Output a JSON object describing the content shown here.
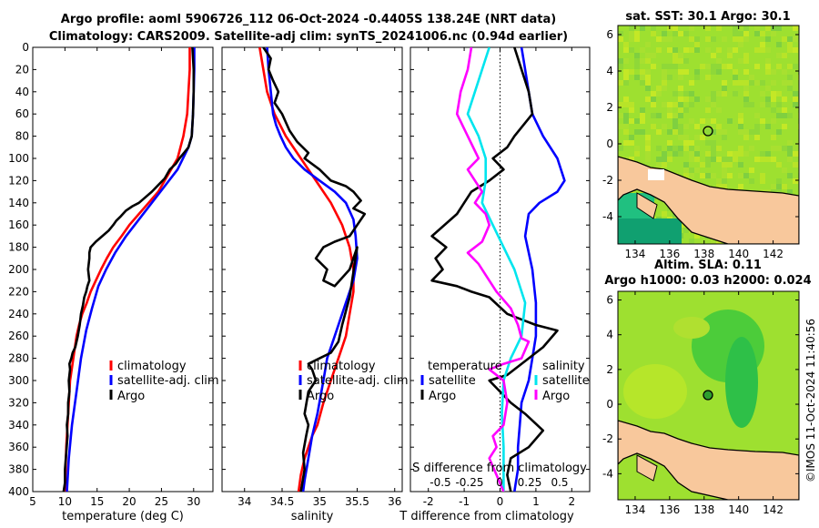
{
  "title_line1": "Argo profile: aoml 5906726_112 06-Oct-2024 -0.4405S 138.24E (NRT data)",
  "title_line2": "Climatology: CARS2009. Satellite-adj clim: synTS_20241006.nc (0.94d earlier)",
  "credit": "©IMOS 11-Oct-2024 11:40:56",
  "depth_ticks": [
    0,
    20,
    40,
    60,
    80,
    100,
    120,
    140,
    160,
    180,
    200,
    220,
    240,
    260,
    280,
    300,
    320,
    340,
    360,
    380,
    400
  ],
  "chart_data": [
    {
      "type": "line",
      "name": "temperature",
      "xlabel": "temperature (deg C)",
      "xlim": [
        5,
        33
      ],
      "ylim": [
        0,
        400
      ],
      "xticks": [
        5,
        10,
        15,
        20,
        25,
        30
      ],
      "legend": [
        "climatology",
        "satellite-adj. clim",
        "Argo"
      ],
      "series": [
        {
          "name": "climatology",
          "color": "#ff0000",
          "x": [
            29.4,
            29.4,
            29.2,
            29,
            28.4,
            27.5,
            26.5,
            25.5,
            24.5,
            23,
            21.5,
            20,
            18.8,
            17.5,
            16.5,
            15.6,
            14.8,
            14,
            13.4,
            12.7,
            12.2,
            11.8,
            11.3,
            10.8,
            10.5,
            10.2,
            10
          ],
          "y": [
            0,
            20,
            40,
            60,
            80,
            100,
            110,
            120,
            130,
            140,
            150,
            160,
            170,
            180,
            190,
            200,
            210,
            220,
            230,
            240,
            250,
            260,
            280,
            300,
            330,
            360,
            400
          ]
        },
        {
          "name": "satellite-adj. clim",
          "color": "#0000ff",
          "x": [
            30.1,
            30.1,
            30,
            29.9,
            29.7,
            29.2,
            27.5,
            25.5,
            23.5,
            21.5,
            19.5,
            17.8,
            16.4,
            15.2,
            14.2,
            13.3,
            12.5,
            11.8,
            11.1,
            10.6,
            10.3
          ],
          "y": [
            0,
            20,
            40,
            60,
            80,
            90,
            110,
            125,
            140,
            155,
            170,
            185,
            200,
            215,
            235,
            255,
            280,
            310,
            340,
            370,
            400
          ]
        },
        {
          "name": "Argo",
          "color": "#000000",
          "x": [
            29.8,
            29.9,
            30,
            30,
            29.9,
            29.7,
            29.2,
            28.5,
            27.8,
            27.2,
            26.3,
            25.5,
            24.5,
            23.5,
            22.5,
            21.5,
            20.5,
            19.5,
            18.7,
            18,
            17.5,
            16.8,
            15.8,
            14.8,
            14,
            13.8,
            13.8,
            13.6,
            13.8,
            13.5,
            13.3,
            13,
            12.8,
            12.5,
            12.3,
            12,
            11.6,
            11.2,
            11,
            10.7,
            10.8,
            10.6,
            10.7,
            10.5,
            10.5,
            10.3,
            10.4,
            10.2,
            10,
            10,
            9.8
          ],
          "y": [
            0,
            10,
            20,
            40,
            60,
            80,
            90,
            95,
            100,
            105,
            110,
            118,
            124,
            130,
            135,
            140,
            143,
            147,
            152,
            156,
            160,
            165,
            170,
            175,
            180,
            185,
            190,
            200,
            210,
            215,
            220,
            225,
            232,
            240,
            250,
            260,
            270,
            275,
            280,
            285,
            290,
            300,
            310,
            320,
            330,
            340,
            350,
            365,
            380,
            392,
            400
          ]
        }
      ]
    },
    {
      "type": "line",
      "name": "salinity",
      "xlabel": "salinity",
      "xlim": [
        33.7,
        36.1
      ],
      "ylim": [
        0,
        400
      ],
      "xticks": [
        34,
        34.5,
        35,
        35.5,
        36
      ],
      "legend": [
        "climatology",
        "satellite-adj. clim",
        "Argo"
      ],
      "series": [
        {
          "name": "climatology",
          "color": "#ff0000",
          "x": [
            34.2,
            34.25,
            34.3,
            34.4,
            34.55,
            34.75,
            34.95,
            35.15,
            35.3,
            35.4,
            35.45,
            35.45,
            35.4,
            35.35,
            35.25,
            35.15,
            35.05,
            34.97,
            34.9,
            34.85,
            34.8,
            34.75,
            34.72
          ],
          "y": [
            0,
            20,
            40,
            60,
            80,
            100,
            120,
            140,
            160,
            180,
            200,
            220,
            240,
            260,
            280,
            300,
            320,
            340,
            350,
            360,
            370,
            385,
            400
          ]
        },
        {
          "name": "satellite-adj. clim",
          "color": "#0000ff",
          "x": [
            34.3,
            34.32,
            34.35,
            34.38,
            34.42,
            34.48,
            34.55,
            34.65,
            34.8,
            35,
            35.2,
            35.35,
            35.45,
            35.48,
            35.5,
            35.45,
            35.35,
            35.2,
            35.1,
            35.05,
            34.97,
            34.9,
            34.85,
            34.8,
            34.78
          ],
          "y": [
            0,
            20,
            40,
            60,
            70,
            80,
            90,
            100,
            110,
            120,
            130,
            140,
            155,
            170,
            190,
            210,
            230,
            260,
            280,
            300,
            330,
            350,
            370,
            390,
            400
          ]
        },
        {
          "name": "Argo",
          "color": "#000000",
          "x": [
            34.25,
            34.3,
            34.35,
            34.32,
            34.38,
            34.45,
            34.4,
            34.5,
            34.6,
            34.7,
            34.85,
            34.8,
            35,
            35.15,
            35.35,
            35.45,
            35.55,
            35.45,
            35.6,
            35.5,
            35.4,
            35.2,
            35.05,
            34.95,
            35.1,
            35.05,
            35.2,
            35.4,
            35.5,
            35.4,
            35.3,
            35.25,
            35.15,
            35,
            34.85,
            34.9,
            34.95,
            34.85,
            34.8,
            34.85,
            34.82,
            34.78,
            34.8,
            34.75
          ],
          "y": [
            0,
            5,
            10,
            20,
            30,
            40,
            50,
            60,
            75,
            85,
            95,
            100,
            110,
            120,
            125,
            130,
            138,
            145,
            150,
            160,
            170,
            175,
            180,
            190,
            200,
            210,
            215,
            200,
            180,
            225,
            250,
            265,
            275,
            280,
            285,
            290,
            300,
            310,
            330,
            340,
            350,
            365,
            380,
            400
          ]
        }
      ]
    },
    {
      "type": "line",
      "name": "difference",
      "xlabel": "T difference from climatology",
      "xlabel2": "S difference from climatology",
      "xlim": [
        -2.5,
        2.5
      ],
      "ylim": [
        0,
        400
      ],
      "xticks": [
        -2,
        -1,
        0,
        1,
        2
      ],
      "sticks_labels": [
        "-0.5",
        "-0.25",
        "0",
        "0.25",
        "0.5"
      ],
      "legend_left_title": "temperature",
      "legend_right_title": "salinity",
      "legend": [
        "satellite",
        "Argo",
        "satellite",
        "Argo"
      ],
      "series": [
        {
          "name": "temperature satellite",
          "color": "#0000ff",
          "x": [
            0.6,
            0.7,
            0.8,
            0.9,
            1.2,
            1.6,
            1.8,
            1.6,
            1.1,
            0.8,
            0.7,
            0.9,
            1.0,
            1.0,
            0.9,
            0.8,
            0.6,
            0.55,
            0.5,
            0.5,
            0.45,
            0.4
          ],
          "y": [
            0,
            20,
            40,
            60,
            80,
            100,
            120,
            130,
            140,
            150,
            170,
            200,
            230,
            260,
            280,
            300,
            320,
            340,
            360,
            380,
            390,
            400
          ]
        },
        {
          "name": "temperature Argo",
          "color": "#000000",
          "x": [
            0.4,
            0.6,
            0.8,
            0.9,
            0.4,
            0.2,
            -0.2,
            0.1,
            -0.3,
            -0.8,
            -1.2,
            -1.9,
            -1.5,
            -1.8,
            -1.6,
            -1.9,
            -1.2,
            -0.8,
            -0.3,
            0.2,
            0.6,
            1.0,
            1.6,
            1.2,
            0.8,
            0.2,
            -0.3,
            0.3,
            0.7,
            1.2,
            0.8,
            0.3,
            0.2,
            0.3
          ],
          "y": [
            0,
            20,
            40,
            60,
            80,
            90,
            100,
            110,
            120,
            130,
            150,
            170,
            180,
            190,
            200,
            210,
            215,
            220,
            225,
            240,
            245,
            250,
            255,
            270,
            280,
            295,
            300,
            320,
            330,
            345,
            360,
            370,
            385,
            400
          ]
        },
        {
          "name": "salinity satellite",
          "color": "#00e5ee",
          "x": [
            -0.3,
            -0.5,
            -0.7,
            -0.9,
            -0.6,
            -0.4,
            -0.4,
            -0.5,
            -0.2,
            0.1,
            0.4,
            0.7,
            0.6,
            0.3,
            0.1,
            0.05,
            0.1,
            0.1,
            0.1
          ],
          "y": [
            0,
            20,
            40,
            60,
            80,
            100,
            120,
            140,
            160,
            180,
            200,
            230,
            260,
            280,
            300,
            330,
            360,
            380,
            400
          ]
        },
        {
          "name": "salinity Argo",
          "color": "#ff00ff",
          "x": [
            -0.8,
            -0.9,
            -1.1,
            -1.2,
            -0.9,
            -0.6,
            -0.9,
            -0.5,
            -0.7,
            -0.4,
            -0.3,
            -0.5,
            -0.9,
            -0.6,
            -0.4,
            -0.1,
            0.3,
            0.5,
            0.6,
            0.8,
            0.6,
            0.1,
            -0.3,
            0.1,
            0.2,
            0.1,
            -0.2,
            -0.1,
            -0.3,
            -0.1,
            0.1
          ],
          "y": [
            0,
            20,
            40,
            60,
            80,
            100,
            110,
            130,
            140,
            150,
            160,
            175,
            185,
            195,
            205,
            220,
            235,
            250,
            262,
            265,
            280,
            285,
            290,
            300,
            320,
            340,
            350,
            360,
            370,
            385,
            400
          ]
        }
      ]
    },
    {
      "type": "heatmap",
      "name": "sat_sst_map",
      "title": "sat. SST: 30.1 Argo: 30.1",
      "xticks": [
        134,
        136,
        138,
        140,
        142
      ],
      "yticks": [
        -4,
        -2,
        0,
        2,
        4,
        6
      ],
      "xlim": [
        133,
        143.5
      ],
      "ylim": [
        -5.5,
        6.5
      ],
      "float_position": [
        138.24,
        0.44
      ]
    },
    {
      "type": "heatmap",
      "name": "altim_sla_map",
      "title": "Altim. SLA: 0.11",
      "subtitle": "Argo h1000: 0.03 h2000: 0.024",
      "xticks": [
        134,
        136,
        138,
        140,
        142
      ],
      "yticks": [
        -4,
        -2,
        0,
        2,
        4,
        6
      ],
      "xlim": [
        133,
        143.5
      ],
      "ylim": [
        -5.5,
        6.5
      ],
      "float_position": [
        138.24,
        0.44
      ]
    }
  ]
}
